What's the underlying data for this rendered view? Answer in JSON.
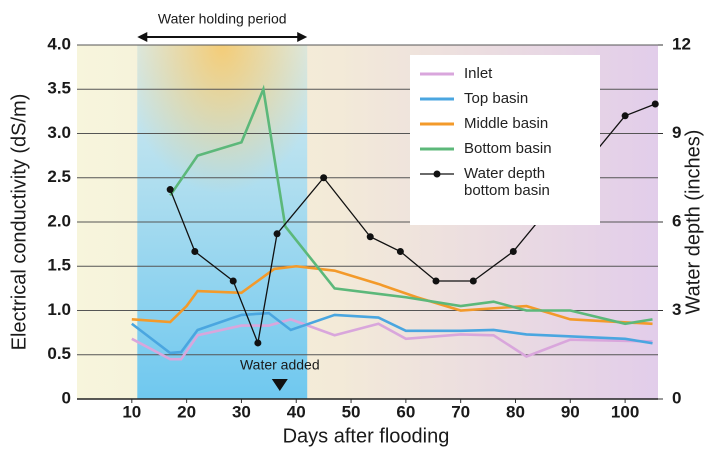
{
  "chart_data": {
    "type": "line",
    "xlabel": "Days after flooding",
    "ylabel": "Electrical conductivity (dS/m)",
    "y2label": "Water depth (inches)",
    "xlim": [
      0,
      106
    ],
    "xticks": [
      10,
      20,
      30,
      40,
      50,
      60,
      70,
      80,
      90,
      100
    ],
    "ylim": [
      0,
      4
    ],
    "yticks": [
      0,
      0.5,
      {
        "value": 1,
        "label": "1.0"
      },
      1.5,
      {
        "value": 2,
        "label": "2.0"
      },
      2.5,
      {
        "value": 3,
        "label": "3.0"
      },
      3.5,
      {
        "value": 4,
        "label": "4.0"
      }
    ],
    "y2lim": [
      0,
      12
    ],
    "y2ticks": [
      0,
      3,
      6,
      9,
      12
    ],
    "grid": true,
    "legend": "upper right",
    "series": [
      {
        "name": "Inlet",
        "color": "#d9a6dc",
        "x": [
          10,
          17,
          19,
          22,
          30,
          35,
          39,
          47,
          55,
          60,
          70,
          76,
          82,
          90,
          105
        ],
        "values": [
          0.68,
          0.45,
          0.45,
          0.72,
          0.83,
          0.83,
          0.9,
          0.72,
          0.85,
          0.68,
          0.73,
          0.72,
          0.48,
          0.67,
          0.65
        ]
      },
      {
        "name": "Top basin",
        "color": "#4aa6e0",
        "x": [
          10,
          17,
          19,
          22,
          30,
          35,
          39,
          47,
          55,
          60,
          70,
          76,
          82,
          100,
          105
        ],
        "values": [
          0.85,
          0.52,
          0.53,
          0.78,
          0.95,
          0.97,
          0.78,
          0.95,
          0.92,
          0.77,
          0.77,
          0.78,
          0.73,
          0.68,
          0.63
        ]
      },
      {
        "name": "Middle basin",
        "color": "#f39a2a",
        "x": [
          10,
          17,
          20,
          22,
          30,
          36,
          40,
          47,
          55,
          62,
          70,
          82,
          90,
          105
        ],
        "values": [
          0.9,
          0.87,
          1.05,
          1.22,
          1.2,
          1.47,
          1.5,
          1.45,
          1.3,
          1.15,
          1.0,
          1.05,
          0.9,
          0.85
        ]
      },
      {
        "name": "Bottom basin",
        "color": "#5cb87a",
        "x": [
          17,
          22,
          30,
          34,
          38,
          47,
          60,
          70,
          76,
          82,
          90,
          100,
          105
        ],
        "values": [
          2.3,
          2.75,
          2.9,
          3.5,
          1.95,
          1.25,
          1.15,
          1.05,
          1.1,
          1.0,
          1.0,
          0.85,
          0.9
        ]
      },
      {
        "name": "Water depth bottom basin",
        "color": "#111111",
        "axis": "y2",
        "markers": true,
        "x": [
          17,
          21.5,
          28.5,
          33,
          36.5,
          45,
          53.5,
          59,
          65.5,
          72.3,
          79.6,
          100,
          105.5
        ],
        "values": [
          7.1,
          5.0,
          4.0,
          1.9,
          5.6,
          7.5,
          5.5,
          5.0,
          4.0,
          4.0,
          5.0,
          9.6,
          10.0
        ]
      }
    ],
    "annotations": [
      {
        "text": "Water holding period",
        "x": [
          11,
          42
        ]
      },
      {
        "text": "Water added",
        "x": 37
      }
    ]
  }
}
